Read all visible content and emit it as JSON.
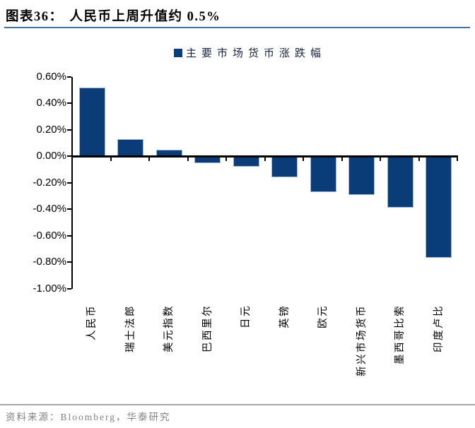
{
  "header": {
    "figure_label": "图表36：",
    "title": "人民币上周升值约 0.5%"
  },
  "legend": {
    "label": "主要市场货币涨跌幅"
  },
  "chart_data": {
    "type": "bar",
    "title": "主要市场货币涨跌幅",
    "categories": [
      "人民币",
      "瑞士法郎",
      "美元指数",
      "巴西里尔",
      "日元",
      "英镑",
      "欧元",
      "新兴市场货币",
      "墨西哥比索",
      "印度卢比"
    ],
    "values": [
      0.52,
      0.13,
      0.05,
      -0.05,
      -0.08,
      -0.16,
      -0.27,
      -0.29,
      -0.39,
      -0.77
    ],
    "unit": "%",
    "xlabel": "",
    "ylabel": "",
    "ylim": [
      -1.0,
      0.6
    ],
    "ytick_step": 0.2,
    "ytick_labels": [
      "0.60%",
      "0.40%",
      "0.20%",
      "0.00%",
      "-0.20%",
      "-0.40%",
      "-0.60%",
      "-0.80%",
      "-1.00%"
    ],
    "legend_position": "top-center",
    "grid": false,
    "x_label_rotation_deg": 90
  },
  "footer": {
    "source": "资料来源：Bloomberg，华泰研究"
  },
  "colors": {
    "bar_fill": "#0a3c78",
    "bar_border": "#9fb5d8",
    "title_rule": "#41719c",
    "axis": "#000000",
    "title_text": "#000000",
    "legend_text": "#1b2440",
    "footer_text": "#808080",
    "footer_rule": "#a6a6a6"
  }
}
